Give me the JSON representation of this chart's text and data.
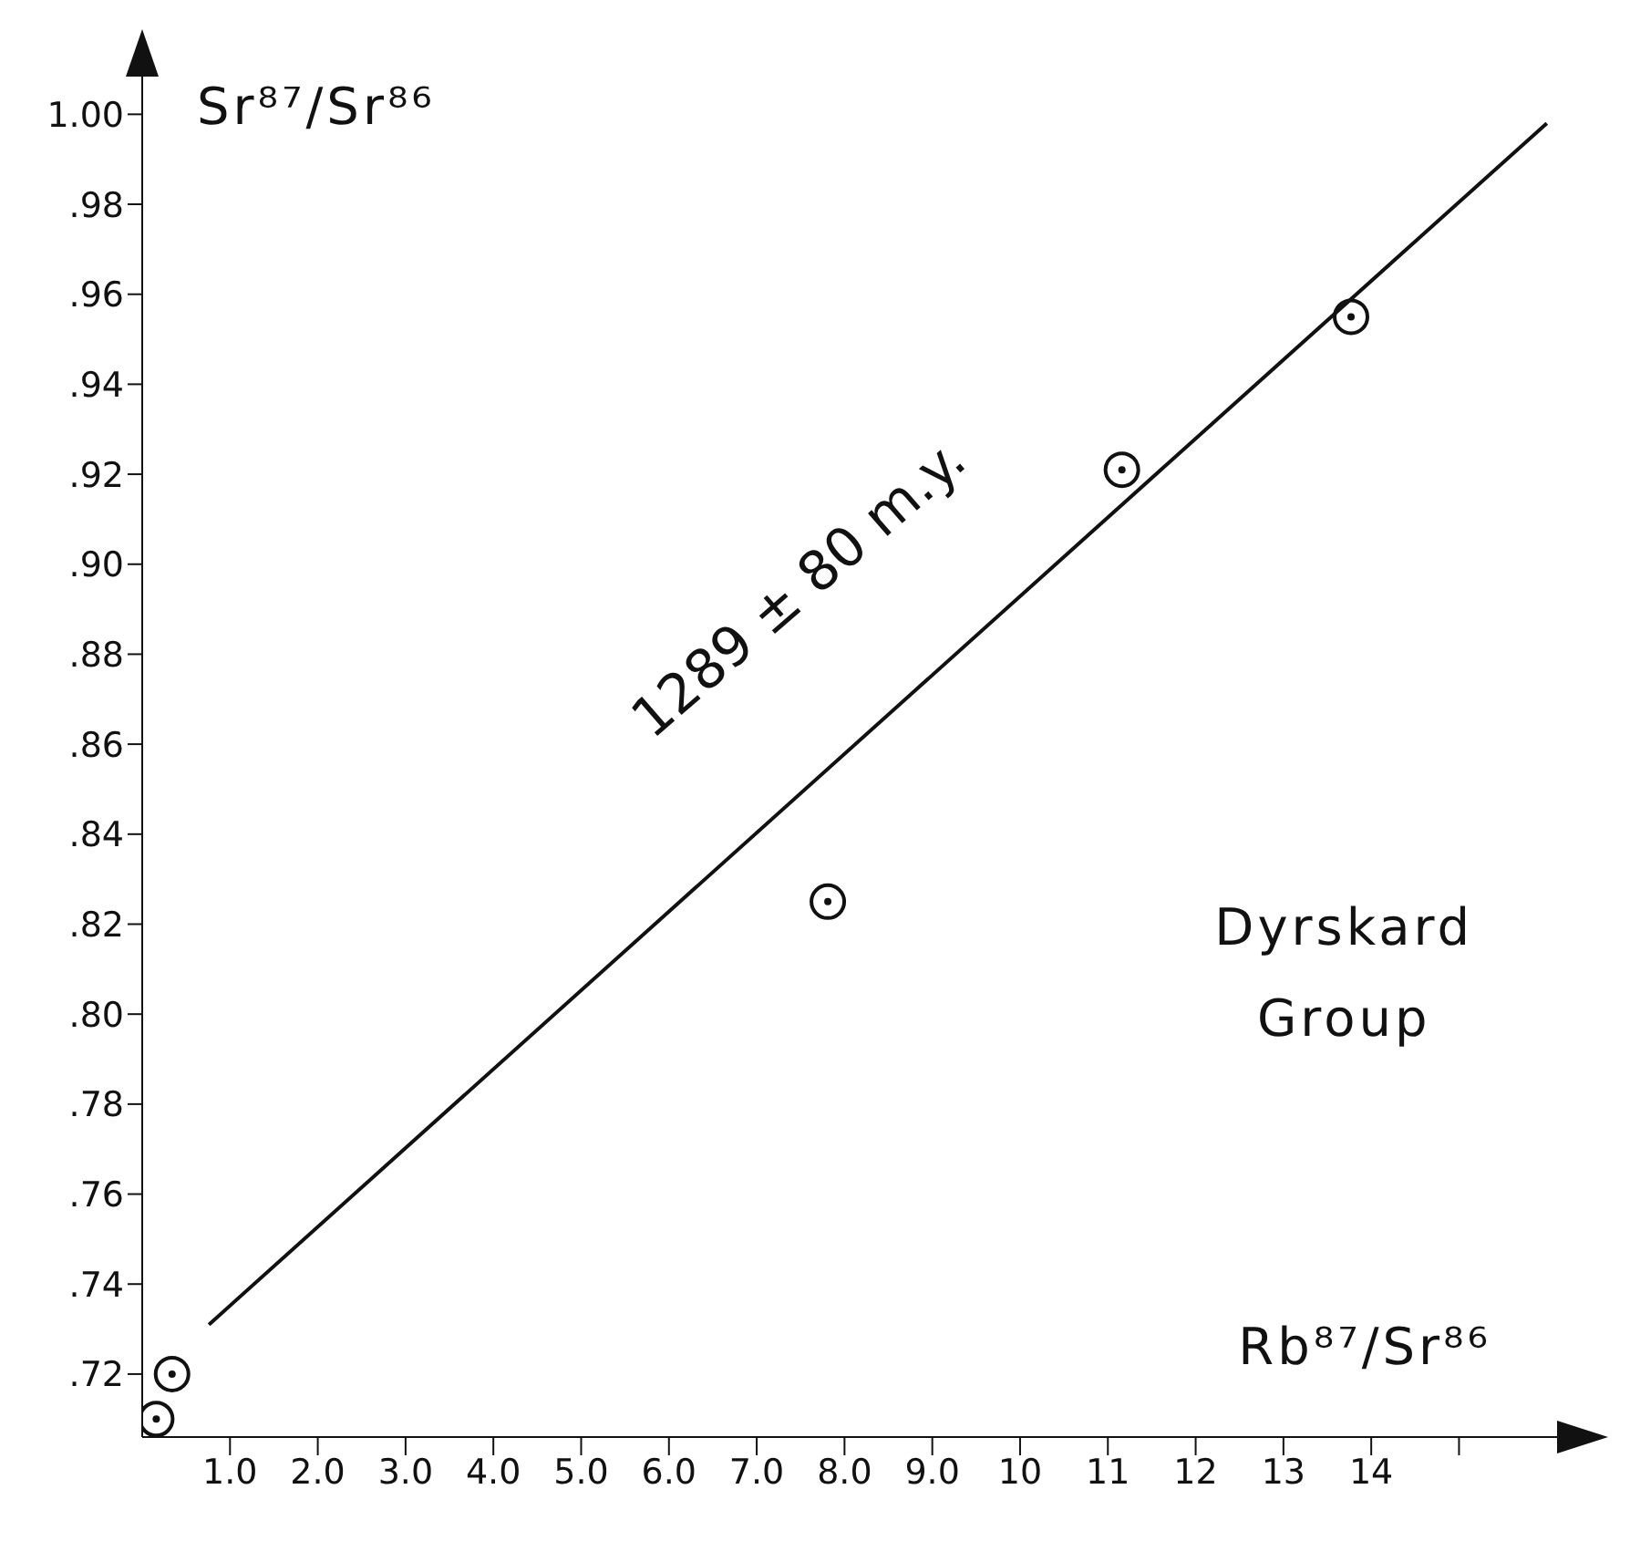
{
  "chart_data": {
    "type": "scatter",
    "xlabel": "Rb⁸⁷/Sr⁸⁶",
    "ylabel": "Sr⁸⁷/Sr⁸⁶",
    "annotations": [
      "1289 ± 80 m.y.",
      "Dyrskard Group"
    ],
    "series": [
      {
        "color": "#111111",
        "marker": "circle",
        "x": [
          0.16,
          0.34,
          7.81,
          11.16,
          13.77
        ],
        "values": [
          0.71,
          0.72,
          0.825,
          0.921,
          0.955
        ]
      },
      {
        "type": "line",
        "color": "#111111",
        "marker": "none",
        "line_style": "solid",
        "x": [
          0.76,
          16.0
        ],
        "values": [
          0.731,
          0.998
        ]
      }
    ],
    "xlim": [
      0,
      16.2
    ],
    "ylim": [
      0.706,
      1.01
    ],
    "xticks": [
      {
        "value": 1,
        "label": "1.0"
      },
      {
        "value": 2,
        "label": "2.0"
      },
      {
        "value": 3,
        "label": "3.0"
      },
      {
        "value": 4,
        "label": "4.0"
      },
      {
        "value": 5,
        "label": "5.0"
      },
      {
        "value": 6,
        "label": "6.0"
      },
      {
        "value": 7,
        "label": "7.0"
      },
      {
        "value": 8,
        "label": "8.0"
      },
      {
        "value": 9,
        "label": "9.0"
      },
      10,
      11,
      12,
      13,
      14,
      {
        "value": 15,
        "label": null
      }
    ],
    "yticks": [
      {
        "value": 0.72,
        "label": ".72"
      },
      {
        "value": 0.74,
        "label": ".74"
      },
      {
        "value": 0.76,
        "label": ".76"
      },
      {
        "value": 0.78,
        "label": ".78"
      },
      {
        "value": 0.8,
        "label": ".80"
      },
      {
        "value": 0.82,
        "label": ".82"
      },
      {
        "value": 0.84,
        "label": ".84"
      },
      {
        "value": 0.86,
        "label": ".86"
      },
      {
        "value": 0.88,
        "label": ".88"
      },
      {
        "value": 0.9,
        "label": ".90"
      },
      {
        "value": 0.92,
        "label": ".92"
      },
      {
        "value": 0.94,
        "label": ".94"
      },
      {
        "value": 0.96,
        "label": ".96"
      },
      {
        "value": 0.98,
        "label": ".98"
      },
      {
        "value": 1.0,
        "label": "1.00"
      }
    ],
    "grid": false
  }
}
